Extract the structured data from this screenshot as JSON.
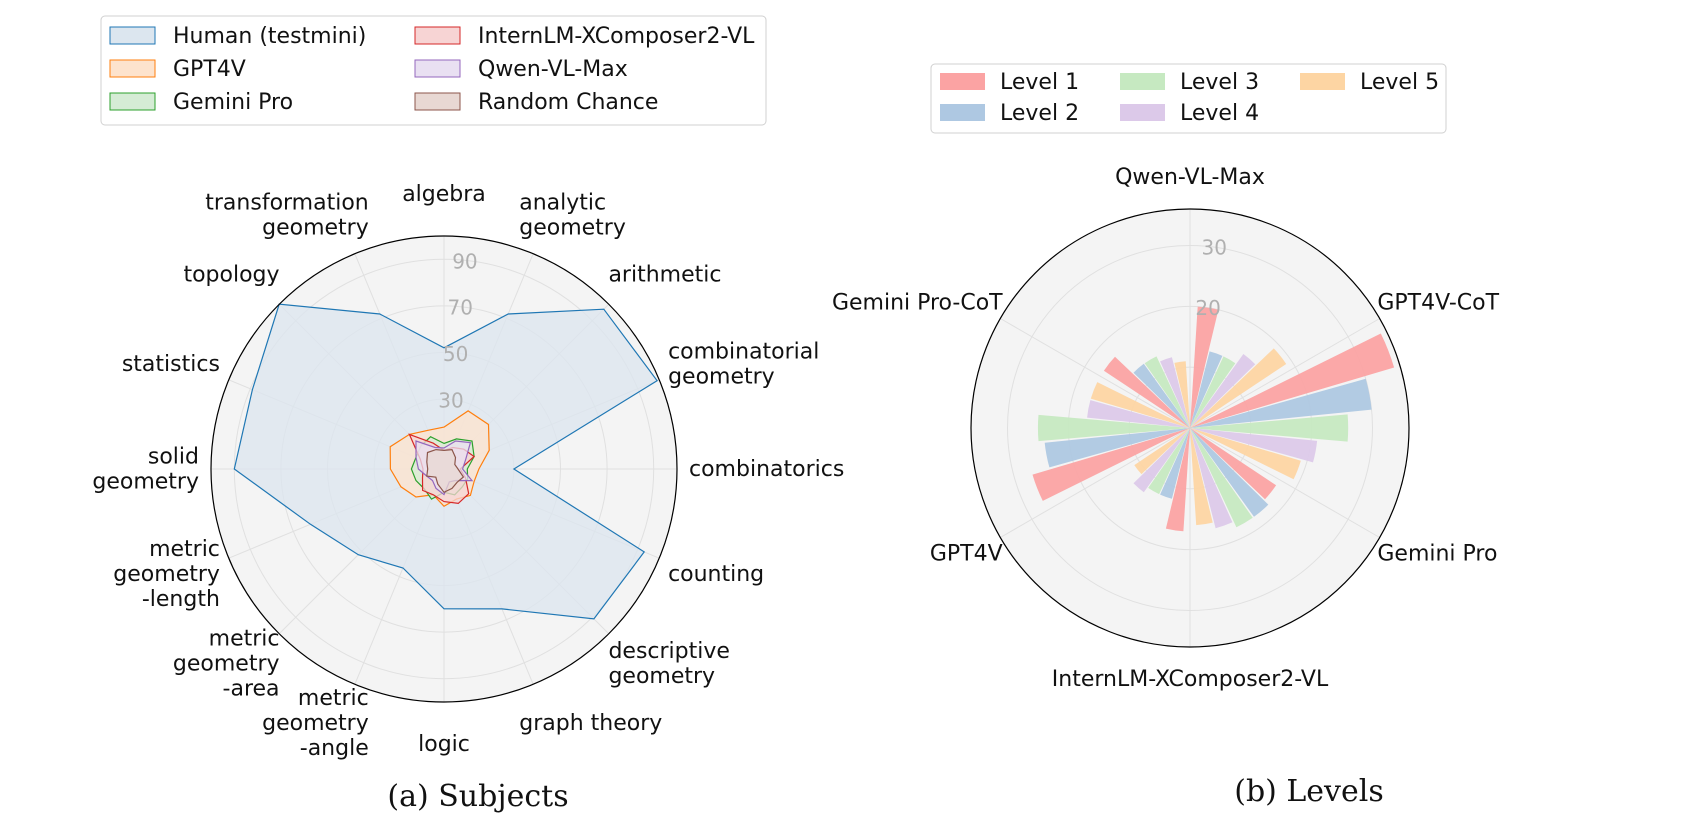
{
  "chart_data": [
    {
      "type": "radar",
      "caption": "(a) Subjects",
      "rmax": 100,
      "ticks": [
        30,
        50,
        70,
        90
      ],
      "grid": true,
      "legend_position": "top",
      "categories": [
        "algebra",
        "analytic\ngeometry",
        "arithmetic",
        "combinatorial\ngeometry",
        "combinatorics",
        "counting",
        "descriptive\ngeometry",
        "graph theory",
        "logic",
        "metric\ngeometry\n-angle",
        "metric\ngeometry\n-area",
        "metric\ngeometry\n-length",
        "solid\ngeometry",
        "statistics",
        "topology",
        "transformation\ngeometry"
      ],
      "series": [
        {
          "name": "Human (testmini)",
          "color": "#1f77b4",
          "fill": "#dce6ef",
          "values": [
            52,
            72,
            97,
            99,
            30,
            93,
            91,
            65,
            60,
            46,
            52,
            62,
            90,
            89,
            100,
            72
          ]
        },
        {
          "name": "GPT4V",
          "color": "#ff7f0e",
          "fill": "#fde3cd",
          "values": [
            18,
            27,
            27,
            21,
            15,
            14,
            16,
            14,
            16,
            12,
            17,
            20,
            23,
            25,
            21,
            18
          ]
        },
        {
          "name": "Gemini Pro",
          "color": "#2ca02c",
          "fill": "#d5ecd5",
          "values": [
            11,
            14,
            17,
            14,
            10,
            11,
            11,
            12,
            10,
            14,
            12,
            13,
            14,
            13,
            14,
            15
          ]
        },
        {
          "name": "InternLM-XComposer2-VL",
          "color": "#d62728",
          "fill": "#f7d4d4",
          "values": [
            8,
            10,
            12,
            14,
            7,
            10,
            15,
            16,
            14,
            12,
            13,
            10,
            9,
            11,
            21,
            12
          ]
        },
        {
          "name": "Qwen-VL-Max",
          "color": "#9467bd",
          "fill": "#e9e0f2",
          "values": [
            9,
            13,
            16,
            10,
            8,
            13,
            7,
            6,
            11,
            9,
            7,
            8,
            11,
            13,
            17,
            10
          ]
        },
        {
          "name": "Random Chance",
          "color": "#8c564b",
          "fill": "#e8d8d3",
          "values": [
            8,
            9,
            7,
            5,
            6,
            9,
            8,
            9,
            10,
            7,
            5,
            8,
            7,
            8,
            10,
            9
          ]
        }
      ]
    },
    {
      "type": "polar-bar",
      "caption": "(b) Levels",
      "rmax": 36,
      "ticks": [
        20,
        30
      ],
      "grid": true,
      "legend_position": "top",
      "categories": [
        "Qwen-VL-Max",
        "GPT4V-CoT",
        "Gemini Pro",
        "InternLM-XComposer2-VL",
        "GPT4V",
        "Gemini Pro-CoT"
      ],
      "levels": [
        {
          "name": "Level 1",
          "color": "#fba3a3"
        },
        {
          "name": "Level 2",
          "color": "#aec8e2"
        },
        {
          "name": "Level 3",
          "color": "#c6e9c1"
        },
        {
          "name": "Level 4",
          "color": "#dcc9e9"
        },
        {
          "name": "Level 5",
          "color": "#fdd5a3"
        }
      ],
      "values": [
        [
          20,
          13,
          13,
          15,
          19
        ],
        [
          35,
          30,
          26,
          21,
          19
        ],
        [
          17,
          18,
          18,
          17,
          16
        ],
        [
          17,
          12,
          12,
          13,
          11
        ],
        [
          27,
          24,
          25,
          17,
          17
        ],
        [
          17,
          13,
          13,
          12,
          11
        ]
      ]
    }
  ]
}
